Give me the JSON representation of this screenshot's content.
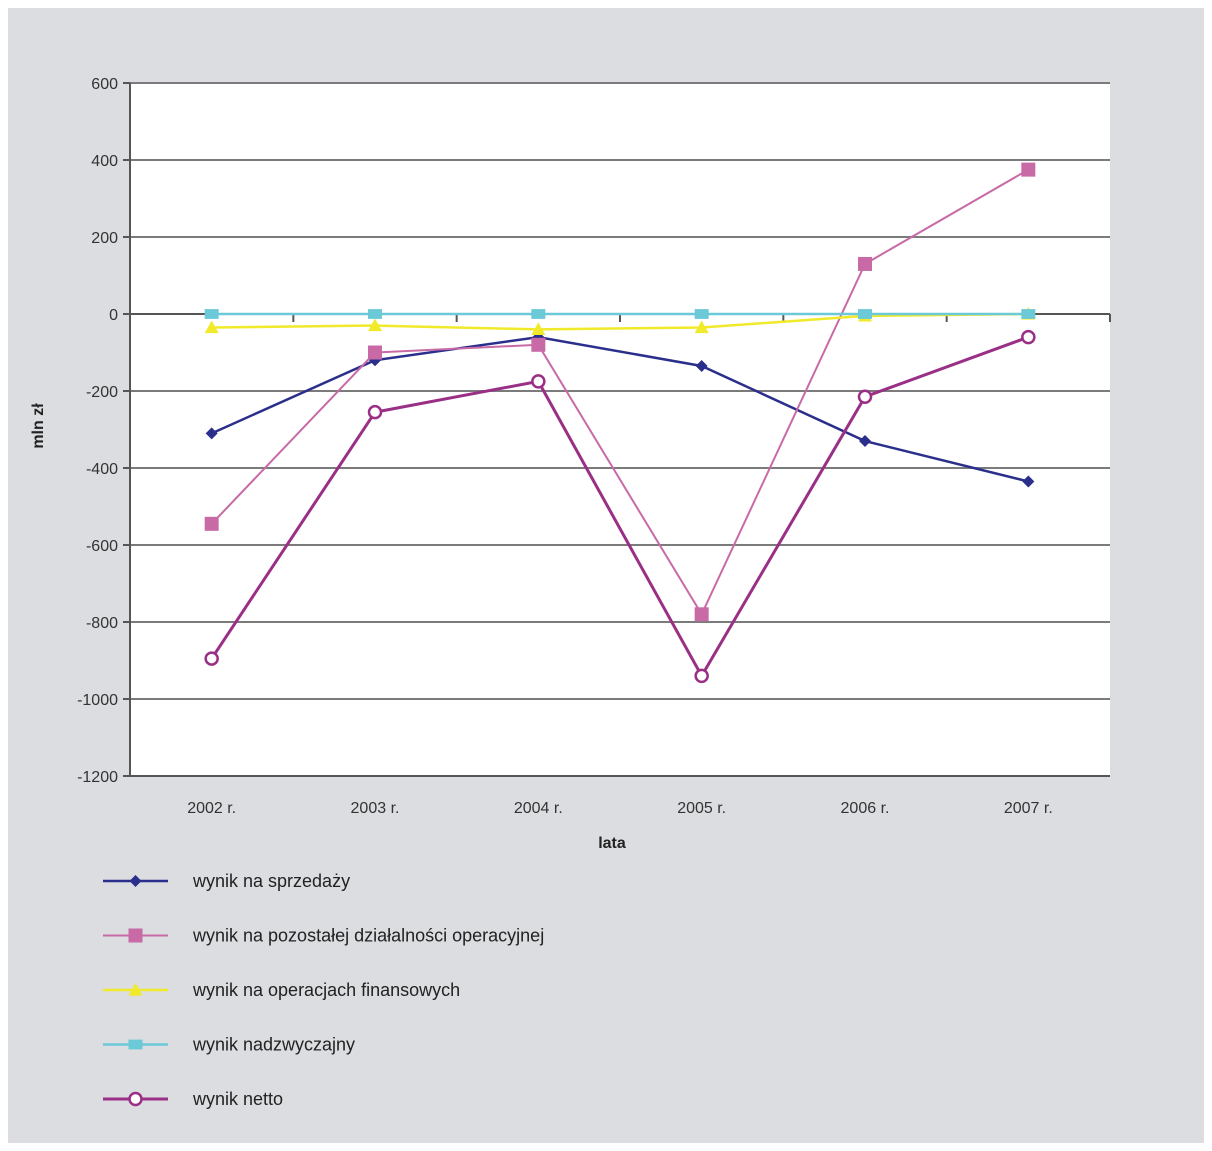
{
  "chart_data": {
    "type": "line",
    "categories": [
      "2002 r.",
      "2003 r.",
      "2004 r.",
      "2005 r.",
      "2006 r.",
      "2007 r."
    ],
    "xlabel": "lata",
    "ylabel": "mln zł",
    "ylim": [
      -1200,
      600
    ],
    "yticks": [
      600,
      400,
      200,
      0,
      -200,
      -400,
      -600,
      -800,
      -1000,
      -1200
    ],
    "grid": true,
    "legend_position": "bottom-left",
    "series": [
      {
        "name": "wynik na sprzedaży",
        "color": "#2b2f8c",
        "marker": "diamond",
        "values": [
          -310,
          -120,
          -60,
          -135,
          -330,
          -435
        ]
      },
      {
        "name": "wynik na pozostałej działalności operacyjnej",
        "color": "#c86aa6",
        "marker": "square",
        "values": [
          -545,
          -100,
          -80,
          -780,
          130,
          375
        ]
      },
      {
        "name": "wynik na operacjach finansowych",
        "color": "#f0ea2a",
        "marker": "triangle",
        "values": [
          -35,
          -30,
          -40,
          -35,
          -5,
          0
        ]
      },
      {
        "name": "wynik nadzwyczajny",
        "color": "#6cc9d8",
        "marker": "x",
        "values": [
          0,
          0,
          0,
          0,
          0,
          0
        ]
      },
      {
        "name": "wynik netto",
        "color": "#9a2f86",
        "marker": "circle",
        "values": [
          -895,
          -255,
          -175,
          -940,
          -215,
          -60
        ]
      }
    ]
  }
}
